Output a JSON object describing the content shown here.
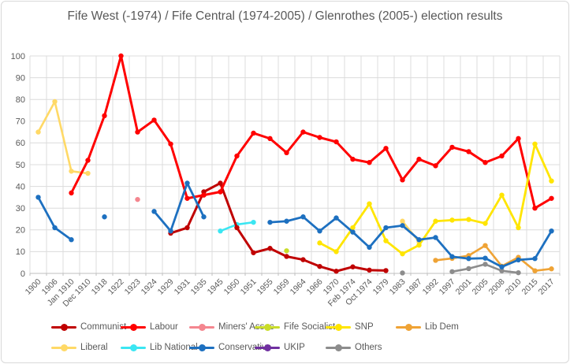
{
  "title": "Fife West (-1974) / Fife Central (1974-2005) / Glenrothes (2005-) election results",
  "colors": {
    "text": "#595959",
    "grid": "#dcdcdc",
    "axis": "#bfbfbf",
    "background": "#ffffff"
  },
  "chart_data": {
    "type": "line",
    "title": "Fife West (-1974) / Fife Central (1974-2005) / Glenrothes (2005-) election results",
    "xlabel": "",
    "ylabel": "",
    "ylim": [
      0,
      100
    ],
    "yticks": [
      0,
      10,
      20,
      30,
      40,
      50,
      60,
      70,
      80,
      90,
      100
    ],
    "grid": true,
    "legend_position": "bottom",
    "categories": [
      "1900",
      "1906",
      "Jan 1910",
      "Dec 1910",
      "1918",
      "1922",
      "1923",
      "1924",
      "1929",
      "1931",
      "1935",
      "1945",
      "1950",
      "1951",
      "1955",
      "1959",
      "1964",
      "1966",
      "1970",
      "Feb 1974",
      "Oct 1974",
      "1979",
      "1983",
      "1987",
      "1992",
      "1997",
      "2001",
      "2005",
      "2008",
      "2010",
      "2015",
      "2017"
    ],
    "series": [
      {
        "name": "Communist",
        "color": "#c00000",
        "values": [
          null,
          null,
          null,
          null,
          null,
          null,
          null,
          null,
          18.5,
          21,
          37.5,
          41.5,
          21,
          9.5,
          11.5,
          7.8,
          6.3,
          3.2,
          1,
          3,
          1.5,
          1.3,
          null,
          null,
          null,
          null,
          null,
          null,
          null,
          null,
          null,
          null
        ]
      },
      {
        "name": "Labour",
        "color": "#ff0000",
        "values": [
          null,
          null,
          37,
          52,
          72.5,
          100,
          65,
          70.5,
          59.5,
          34.5,
          36,
          37.5,
          54,
          64.5,
          62,
          55.5,
          65,
          62.5,
          60.5,
          52.5,
          51,
          57.5,
          43,
          52.5,
          49.5,
          58,
          56,
          51,
          54,
          62,
          30,
          34.5
        ]
      },
      {
        "name": "Miners' Assoc",
        "color": "#f4868f",
        "values": [
          null,
          null,
          null,
          null,
          null,
          null,
          34,
          null,
          null,
          null,
          null,
          null,
          null,
          null,
          null,
          null,
          null,
          null,
          null,
          null,
          null,
          null,
          null,
          null,
          null,
          null,
          null,
          null,
          null,
          null,
          null,
          null
        ]
      },
      {
        "name": "Fife Socialist",
        "color": "#c9dc2a",
        "values": [
          null,
          null,
          null,
          null,
          null,
          null,
          null,
          null,
          null,
          null,
          null,
          null,
          null,
          null,
          null,
          10.4,
          null,
          null,
          null,
          null,
          null,
          null,
          null,
          null,
          null,
          null,
          null,
          null,
          null,
          null,
          null,
          null
        ]
      },
      {
        "name": "SNP",
        "color": "#ffe500",
        "values": [
          null,
          null,
          null,
          null,
          null,
          null,
          null,
          null,
          null,
          null,
          null,
          null,
          null,
          null,
          null,
          null,
          null,
          14,
          10,
          21,
          32,
          15,
          9,
          13,
          24,
          24.5,
          24.8,
          23,
          36,
          21,
          59.5,
          42.5
        ]
      },
      {
        "name": "Lib Dem",
        "color": "#efa335",
        "values": [
          null,
          null,
          null,
          null,
          null,
          null,
          null,
          null,
          null,
          null,
          null,
          null,
          null,
          null,
          null,
          null,
          null,
          null,
          null,
          null,
          null,
          null,
          null,
          null,
          6,
          6.9,
          8.2,
          12.8,
          3.3,
          7.4,
          1.2,
          2.1
        ]
      },
      {
        "name": "Liberal",
        "color": "#ffd966",
        "values": [
          65,
          79,
          47,
          46,
          null,
          null,
          null,
          null,
          null,
          null,
          null,
          null,
          null,
          null,
          null,
          null,
          null,
          null,
          null,
          null,
          null,
          null,
          24,
          14.5,
          null,
          null,
          null,
          null,
          null,
          null,
          null,
          null
        ]
      },
      {
        "name": "Lib National",
        "color": "#3be6f2",
        "values": [
          null,
          null,
          null,
          null,
          null,
          null,
          null,
          null,
          null,
          null,
          null,
          19.5,
          22.5,
          23.5,
          null,
          null,
          null,
          null,
          null,
          null,
          null,
          null,
          null,
          null,
          null,
          null,
          null,
          null,
          null,
          null,
          null,
          null
        ]
      },
      {
        "name": "Conservative",
        "color": "#1d70c0",
        "values": [
          35,
          21,
          15.5,
          null,
          26,
          null,
          null,
          28.5,
          19.5,
          41.5,
          26,
          null,
          null,
          null,
          23.5,
          24,
          26,
          19.5,
          25.5,
          19,
          12,
          21,
          22,
          15.5,
          16.5,
          7.7,
          6.8,
          7,
          3,
          6.2,
          6.8,
          19.5
        ]
      },
      {
        "name": "UKIP",
        "color": "#7030a0",
        "values": [
          null,
          null,
          null,
          null,
          null,
          null,
          null,
          null,
          null,
          null,
          null,
          null,
          null,
          null,
          null,
          null,
          null,
          null,
          null,
          null,
          null,
          null,
          null,
          null,
          null,
          null,
          null,
          null,
          null,
          null,
          null,
          null
        ]
      },
      {
        "name": "Others",
        "color": "#8c8c8c",
        "values": [
          null,
          null,
          null,
          null,
          null,
          null,
          null,
          null,
          null,
          null,
          null,
          null,
          null,
          null,
          null,
          null,
          null,
          null,
          null,
          null,
          null,
          null,
          0.2,
          null,
          null,
          0.8,
          2.2,
          4.2,
          1.2,
          0.3,
          null,
          null
        ]
      }
    ]
  }
}
